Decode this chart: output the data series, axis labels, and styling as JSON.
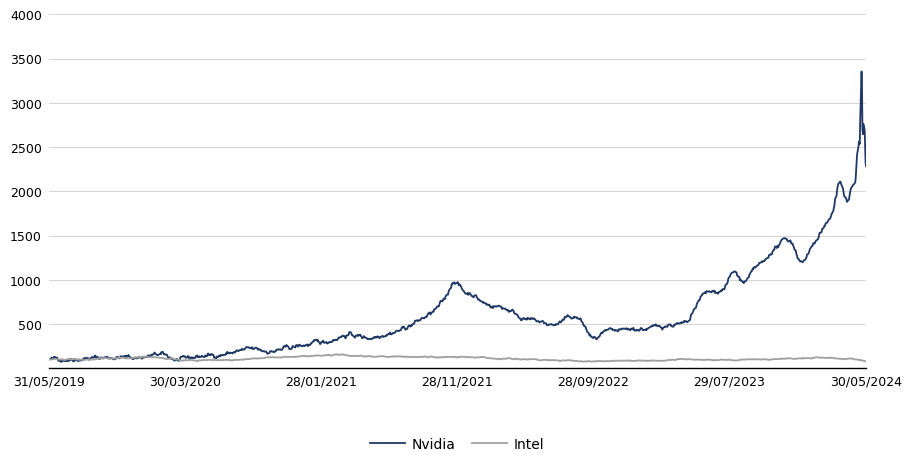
{
  "title": "",
  "nvidia_color": "#1F3864",
  "intel_color": "#A0A0A0",
  "background_color": "#FFFFFF",
  "grid_color": "#D0D0D0",
  "ylim": [
    0,
    4000
  ],
  "yticks": [
    0,
    500,
    1000,
    1500,
    2000,
    2500,
    3000,
    3500,
    4000
  ],
  "x_tick_labels": [
    "31/05/2019",
    "30/03/2020",
    "28/01/2021",
    "28/11/2021",
    "28/09/2022",
    "29/07/2023",
    "30/05/2024"
  ],
  "legend_nvidia": "Nvidia",
  "legend_intel": "Intel",
  "line_width": 1.3
}
